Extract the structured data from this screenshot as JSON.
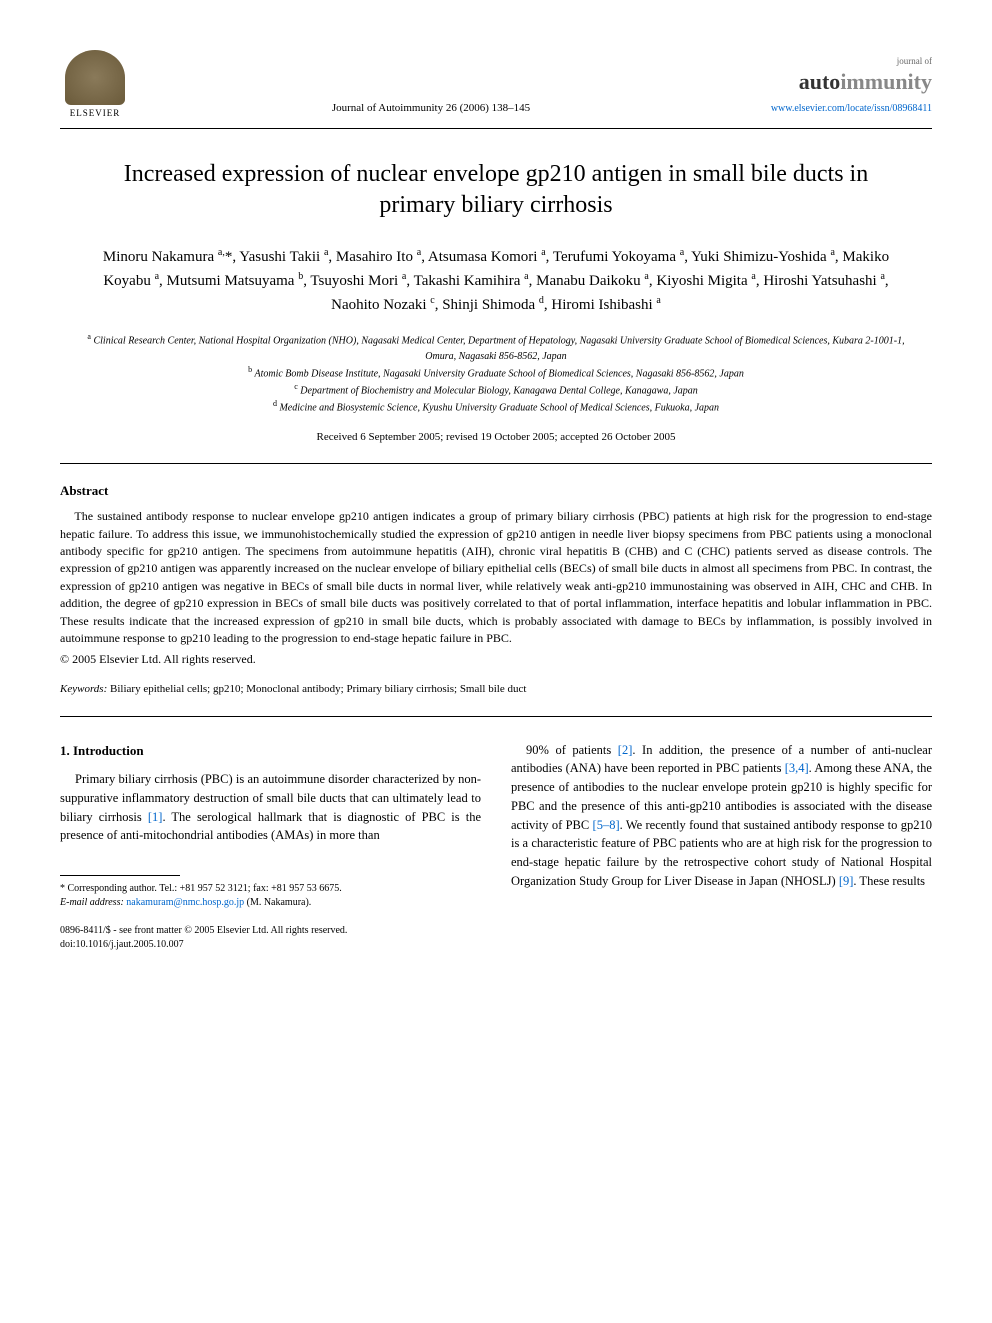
{
  "header": {
    "publisher_name": "ELSEVIER",
    "journal_ref": "Journal of Autoimmunity 26 (2006) 138–145",
    "journal_logo_top": "journal of",
    "journal_logo_auto": "auto",
    "journal_logo_immunity": "immunity",
    "journal_url": "www.elsevier.com/locate/issn/08968411"
  },
  "title": "Increased expression of nuclear envelope gp210 antigen in small bile ducts in primary biliary cirrhosis",
  "authors_html": "Minoru Nakamura <sup>a,</sup>*, Yasushi Takii <sup>a</sup>, Masahiro Ito <sup>a</sup>, Atsumasa Komori <sup>a</sup>, Terufumi Yokoyama <sup>a</sup>, Yuki Shimizu-Yoshida <sup>a</sup>, Makiko Koyabu <sup>a</sup>, Mutsumi Matsuyama <sup>b</sup>, Tsuyoshi Mori <sup>a</sup>, Takashi Kamihira <sup>a</sup>, Manabu Daikoku <sup>a</sup>, Kiyoshi Migita <sup>a</sup>, Hiroshi Yatsuhashi <sup>a</sup>, Naohito Nozaki <sup>c</sup>, Shinji Shimoda <sup>d</sup>, Hiromi Ishibashi <sup>a</sup>",
  "affiliations": {
    "a": "Clinical Research Center, National Hospital Organization (NHO), Nagasaki Medical Center, Department of Hepatology, Nagasaki University Graduate School of Biomedical Sciences, Kubara 2-1001-1, Omura, Nagasaki 856-8562, Japan",
    "b": "Atomic Bomb Disease Institute, Nagasaki University Graduate School of Biomedical Sciences, Nagasaki 856-8562, Japan",
    "c": "Department of Biochemistry and Molecular Biology, Kanagawa Dental College, Kanagawa, Japan",
    "d": "Medicine and Biosystemic Science, Kyushu University Graduate School of Medical Sciences, Fukuoka, Japan"
  },
  "dates": "Received 6 September 2005; revised 19 October 2005; accepted 26 October 2005",
  "abstract": {
    "heading": "Abstract",
    "text": "The sustained antibody response to nuclear envelope gp210 antigen indicates a group of primary biliary cirrhosis (PBC) patients at high risk for the progression to end-stage hepatic failure. To address this issue, we immunohistochemically studied the expression of gp210 antigen in needle liver biopsy specimens from PBC patients using a monoclonal antibody specific for gp210 antigen. The specimens from autoimmune hepatitis (AIH), chronic viral hepatitis B (CHB) and C (CHC) patients served as disease controls. The expression of gp210 antigen was apparently increased on the nuclear envelope of biliary epithelial cells (BECs) of small bile ducts in almost all specimens from PBC. In contrast, the expression of gp210 antigen was negative in BECs of small bile ducts in normal liver, while relatively weak anti-gp210 immunostaining was observed in AIH, CHC and CHB. In addition, the degree of gp210 expression in BECs of small bile ducts was positively correlated to that of portal inflammation, interface hepatitis and lobular inflammation in PBC. These results indicate that the increased expression of gp210 in small bile ducts, which is probably associated with damage to BECs by inflammation, is possibly involved in autoimmune response to gp210 leading to the progression to end-stage hepatic failure in PBC.",
    "copyright": "© 2005 Elsevier Ltd. All rights reserved."
  },
  "keywords": {
    "label": "Keywords:",
    "text": "Biliary epithelial cells; gp210; Monoclonal antibody; Primary biliary cirrhosis; Small bile duct"
  },
  "body": {
    "section_heading": "1. Introduction",
    "col1_para": "Primary biliary cirrhosis (PBC) is an autoimmune disorder characterized by non-suppurative inflammatory destruction of small bile ducts that can ultimately lead to biliary cirrhosis [1]. The serological hallmark that is diagnostic of PBC is the presence of anti-mitochondrial antibodies (AMAs) in more than",
    "col2_para": "90% of patients [2]. In addition, the presence of a number of anti-nuclear antibodies (ANA) have been reported in PBC patients [3,4]. Among these ANA, the presence of antibodies to the nuclear envelope protein gp210 is highly specific for PBC and the presence of this anti-gp210 antibodies is associated with the disease activity of PBC [5–8]. We recently found that sustained antibody response to gp210 is a characteristic feature of PBC patients who are at high risk for the progression to end-stage hepatic failure by the retrospective cohort study of National Hospital Organization Study Group for Liver Disease in Japan (NHOSLJ) [9]. These results"
  },
  "footnote": {
    "corresponding": "* Corresponding author. Tel.: +81 957 52 3121; fax: +81 957 53 6675.",
    "email_label": "E-mail address:",
    "email": "nakamuram@nmc.hosp.go.jp",
    "email_name": "(M. Nakamura)."
  },
  "bottom": {
    "issn": "0896-8411/$ - see front matter © 2005 Elsevier Ltd. All rights reserved.",
    "doi": "doi:10.1016/j.jaut.2005.10.007"
  },
  "ref_links": [
    "[1]",
    "[2]",
    "[3,4]",
    "[5–8]",
    "[9]"
  ],
  "colors": {
    "link": "#0066cc",
    "text": "#000000",
    "background": "#ffffff"
  }
}
